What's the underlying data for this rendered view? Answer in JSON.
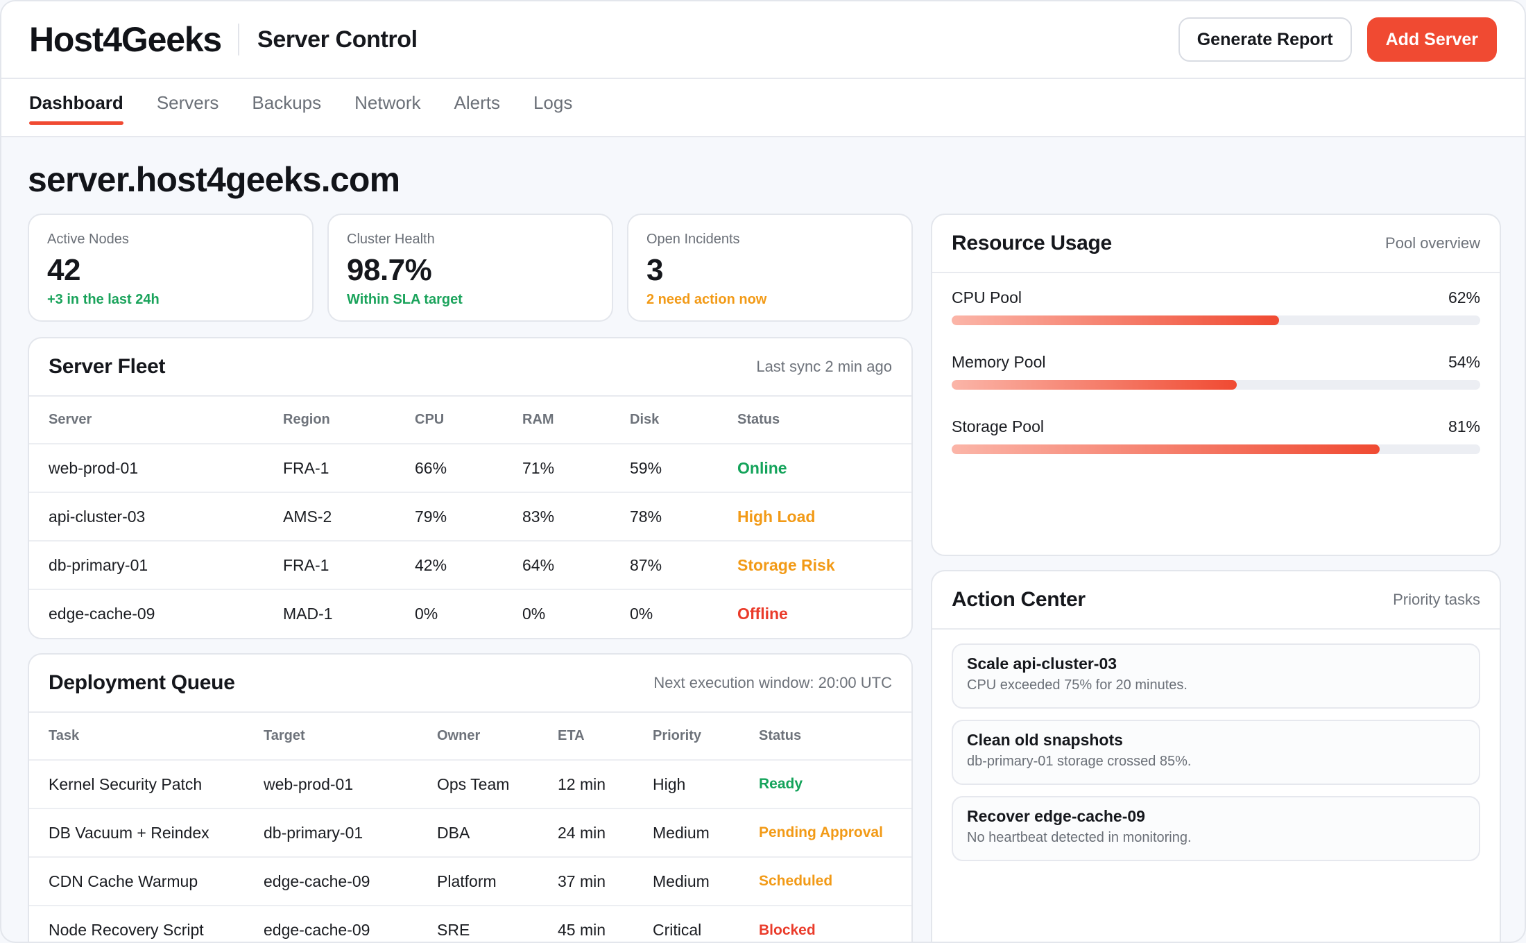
{
  "header": {
    "brand": "Host4Geeks",
    "app_title": "Server Control",
    "generate_report_label": "Generate Report",
    "add_server_label": "Add Server"
  },
  "tabs": [
    {
      "label": "Dashboard",
      "active": true
    },
    {
      "label": "Servers"
    },
    {
      "label": "Backups"
    },
    {
      "label": "Network"
    },
    {
      "label": "Alerts"
    },
    {
      "label": "Logs"
    }
  ],
  "page_title": "server.host4geeks.com",
  "stats": [
    {
      "label": "Active Nodes",
      "value": "42",
      "note": "+3 in the last 24h",
      "note_color": "#1aa35b"
    },
    {
      "label": "Cluster Health",
      "value": "98.7%",
      "note": "Within SLA target",
      "note_color": "#1aa35b"
    },
    {
      "label": "Open Incidents",
      "value": "3",
      "note": "2 need action now",
      "note_color": "#f29a16"
    }
  ],
  "fleet": {
    "title": "Server Fleet",
    "sync": "Last sync 2 min ago",
    "columns": [
      "Server",
      "Region",
      "CPU",
      "RAM",
      "Disk",
      "Status"
    ],
    "rows": [
      {
        "server": "web-prod-01",
        "region": "FRA-1",
        "cpu": "66%",
        "ram": "71%",
        "disk": "59%",
        "status": "Online",
        "status_color": "#13a35a"
      },
      {
        "server": "api-cluster-03",
        "region": "AMS-2",
        "cpu": "79%",
        "ram": "83%",
        "disk": "78%",
        "status": "High Load",
        "status_color": "#f29a16"
      },
      {
        "server": "db-primary-01",
        "region": "FRA-1",
        "cpu": "42%",
        "ram": "64%",
        "disk": "87%",
        "status": "Storage Risk",
        "status_color": "#f29a16"
      },
      {
        "server": "edge-cache-09",
        "region": "MAD-1",
        "cpu": "0%",
        "ram": "0%",
        "disk": "0%",
        "status": "Offline",
        "status_color": "#ea3b2a"
      }
    ]
  },
  "deploy": {
    "title": "Deployment Queue",
    "window": "Next execution window: 20:00 UTC",
    "columns": [
      "Task",
      "Target",
      "Owner",
      "ETA",
      "Priority",
      "Status"
    ],
    "rows": [
      {
        "task": "Kernel Security Patch",
        "target": "web-prod-01",
        "owner": "Ops Team",
        "eta": "12 min",
        "priority": "High",
        "status": "Ready",
        "status_color": "#13a35a"
      },
      {
        "task": "DB Vacuum + Reindex",
        "target": "db-primary-01",
        "owner": "DBA",
        "eta": "24 min",
        "priority": "Medium",
        "status": "Pending Approval",
        "status_color": "#f29a16"
      },
      {
        "task": "CDN Cache Warmup",
        "target": "edge-cache-09",
        "owner": "Platform",
        "eta": "37 min",
        "priority": "Medium",
        "status": "Scheduled",
        "status_color": "#f29a16"
      },
      {
        "task": "Node Recovery Script",
        "target": "edge-cache-09",
        "owner": "SRE",
        "eta": "45 min",
        "priority": "Critical",
        "status": "Blocked",
        "status_color": "#ea3b2a"
      }
    ]
  },
  "resources": {
    "title": "Resource Usage",
    "subtitle": "Pool overview",
    "pools": [
      {
        "label": "CPU Pool",
        "pct": "62%",
        "value": 62
      },
      {
        "label": "Memory Pool",
        "pct": "54%",
        "value": 54
      },
      {
        "label": "Storage Pool",
        "pct": "81%",
        "value": 81
      }
    ]
  },
  "actions": {
    "title": "Action Center",
    "subtitle": "Priority tasks",
    "tasks": [
      {
        "title": "Scale api-cluster-03",
        "desc": "CPU exceeded 75% for 20 minutes."
      },
      {
        "title": "Clean old snapshots",
        "desc": "db-primary-01 storage crossed 85%."
      },
      {
        "title": "Recover edge-cache-09",
        "desc": "No heartbeat detected in monitoring."
      }
    ]
  }
}
